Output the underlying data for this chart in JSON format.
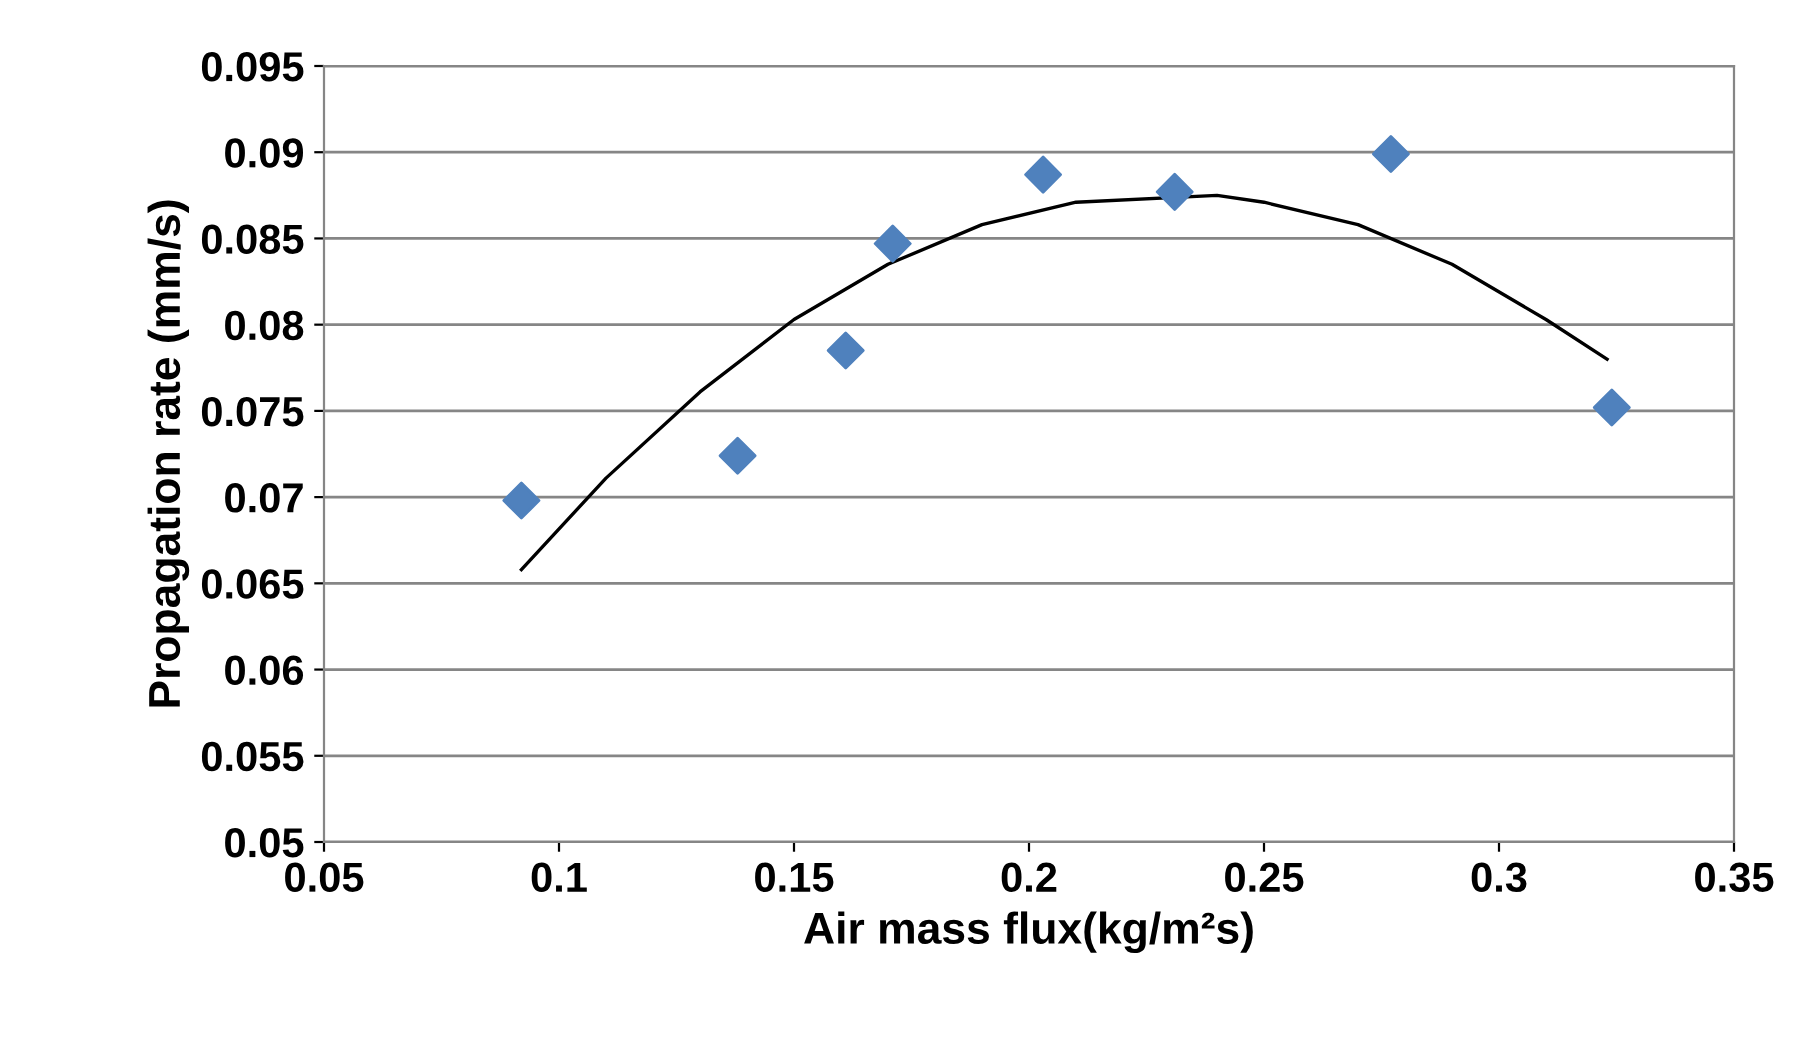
{
  "chart_data": {
    "type": "scatter",
    "xlabel": "Air mass flux(kg/m²s)",
    "ylabel": "Propagation rate (mm/s)",
    "series": [
      {
        "color": "#4f81bd",
        "marker": "diamond",
        "x": [
          0.092,
          0.138,
          0.161,
          0.171,
          0.203,
          0.231,
          0.277,
          0.324
        ],
        "values": [
          0.0698,
          0.0724,
          0.0785,
          0.0847,
          0.0887,
          0.0877,
          0.0899,
          0.0752
        ]
      },
      {
        "type": "line",
        "color": "#000000",
        "marker": "none",
        "line_style": "solid",
        "x": [
          0.092,
          0.11,
          0.13,
          0.15,
          0.17,
          0.19,
          0.21,
          0.24,
          0.25,
          0.27,
          0.29,
          0.31,
          0.323
        ],
        "values": [
          0.0658,
          0.0711,
          0.0761,
          0.0803,
          0.0835,
          0.0858,
          0.0871,
          0.0875,
          0.0871,
          0.0858,
          0.0835,
          0.0803,
          0.078
        ]
      }
    ],
    "xlim": [
      0.05,
      0.35
    ],
    "xticks": [
      0.05,
      0.1,
      0.15,
      0.2,
      0.25,
      0.3,
      0.35
    ],
    "ylim": [
      0.05,
      0.095
    ],
    "yticks": [
      0.05,
      0.055,
      0.06,
      0.065,
      0.07,
      0.075,
      0.08,
      0.085,
      0.09,
      0.095
    ],
    "grid": "y"
  }
}
